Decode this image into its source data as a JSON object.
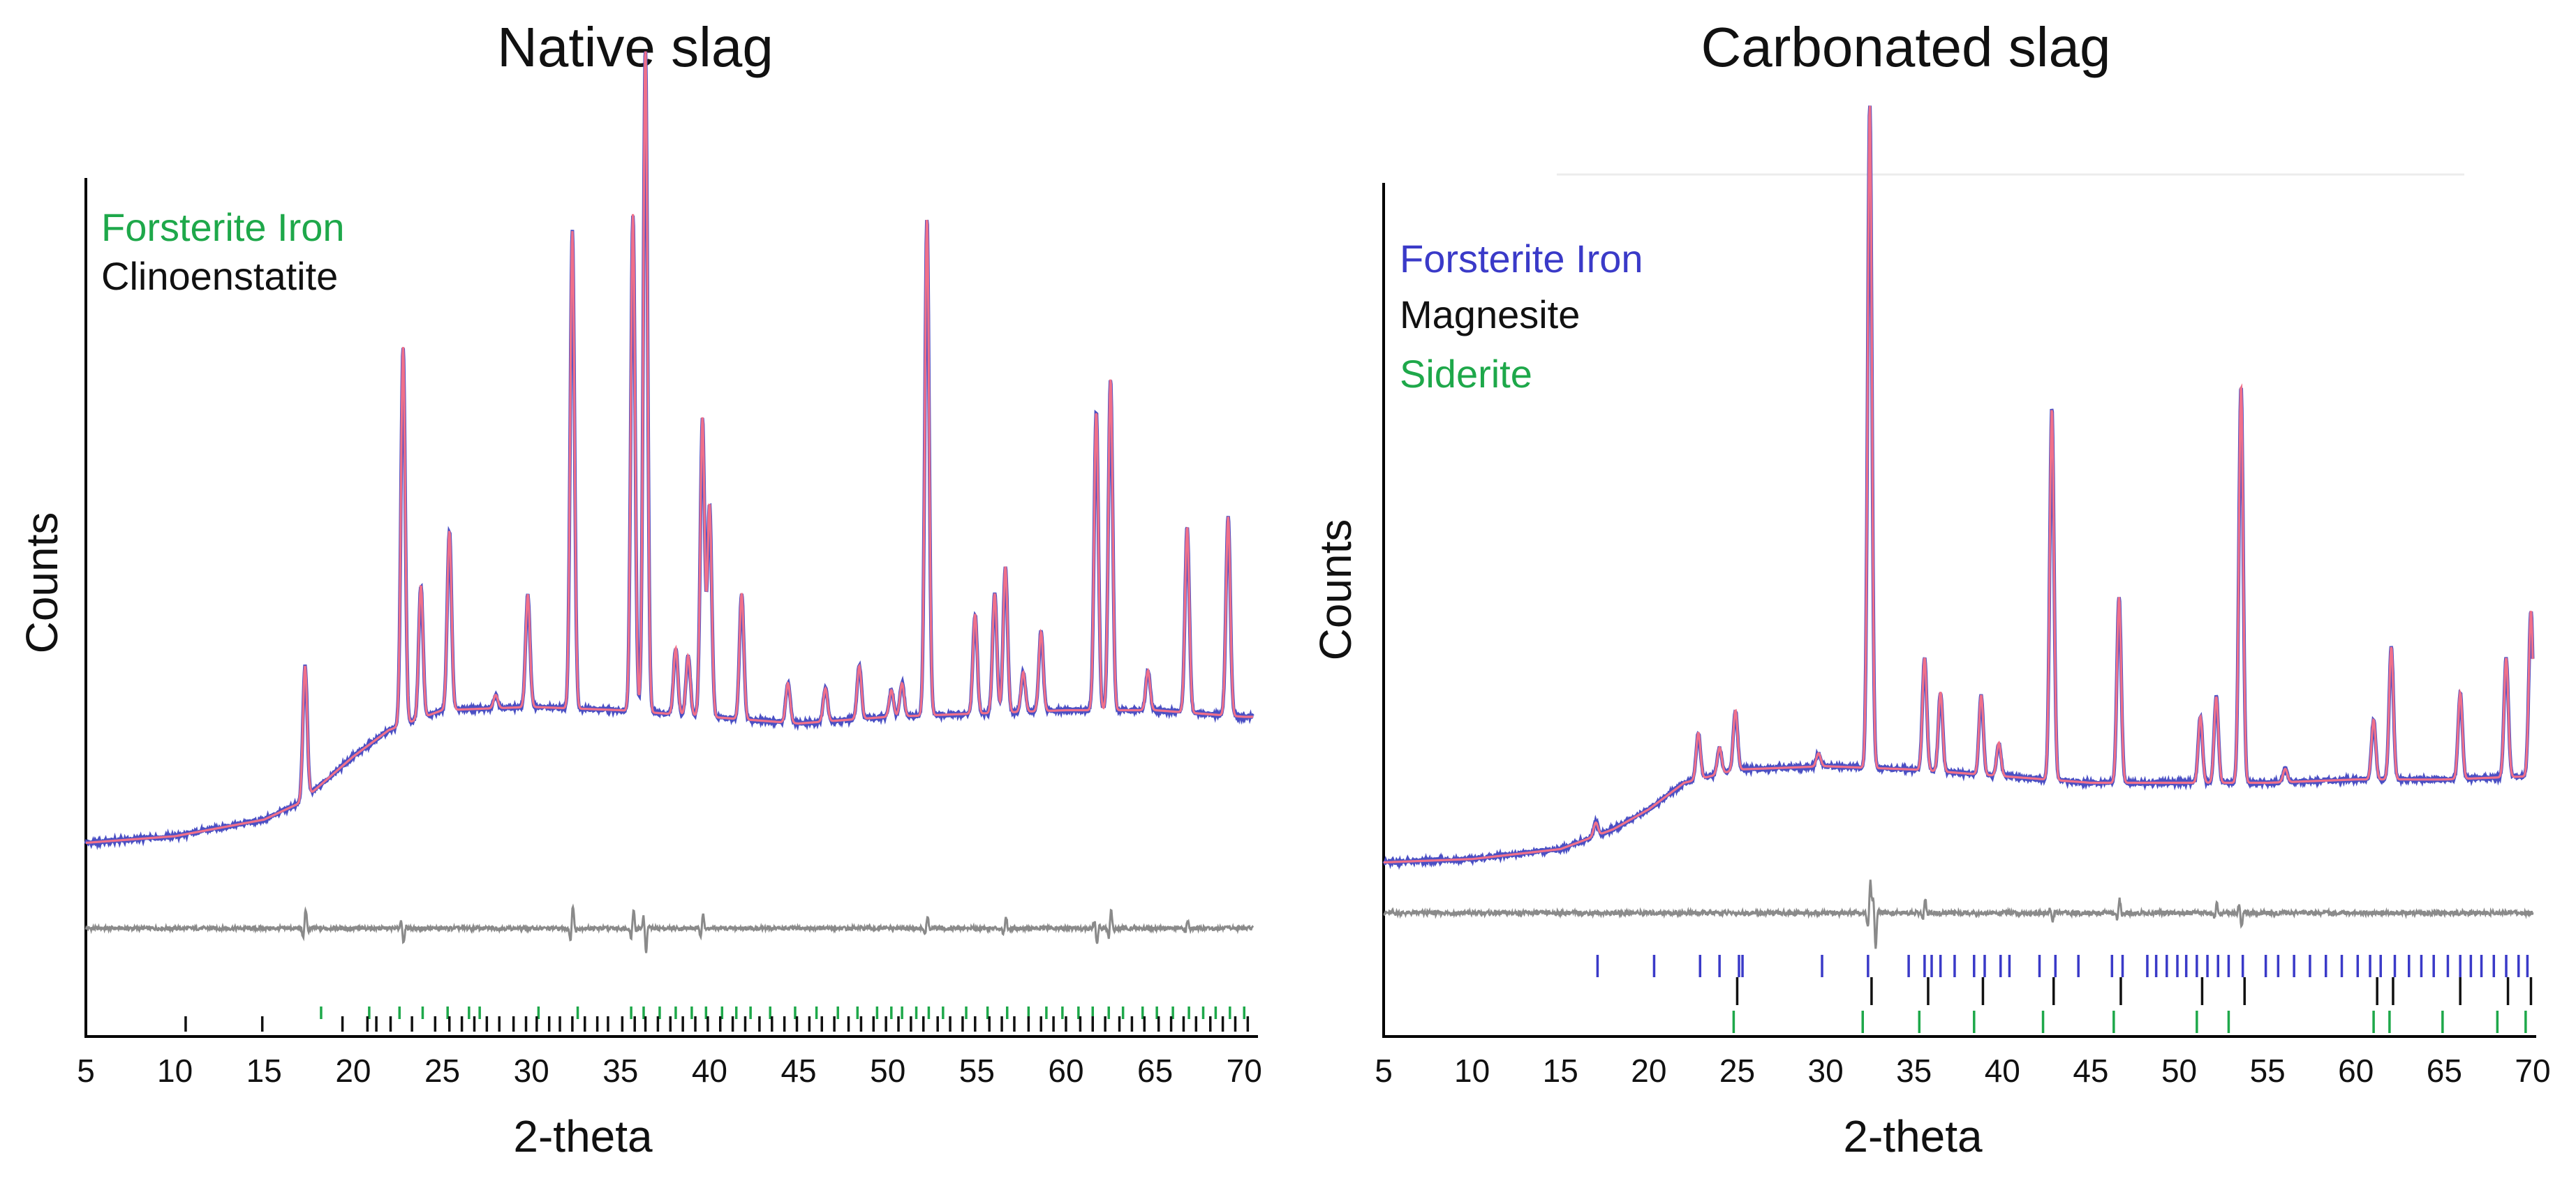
{
  "colors": {
    "observed": "#4a4fc4",
    "calculated": "#f0708a",
    "difference": "#8a8a8a",
    "axis": "#000000",
    "green": "#1ea84a",
    "blue": "#3a3ac8",
    "black": "#111111"
  },
  "chart_data": [
    {
      "type": "line",
      "title": "Native slag",
      "xlabel": "2-theta",
      "ylabel": "Counts",
      "xlim": [
        5,
        70.5
      ],
      "xticks": [
        5,
        10,
        15,
        20,
        25,
        30,
        35,
        40,
        45,
        50,
        55,
        60,
        65,
        70
      ],
      "ylim": [
        0,
        100
      ],
      "legend": [
        {
          "label": "Forsterite Iron",
          "color": "#1ea84a"
        },
        {
          "label": "Clinoenstatite",
          "color": "#111111"
        }
      ],
      "series": [
        {
          "name": "Observed",
          "color": "#4a4fc4"
        },
        {
          "name": "Calculated",
          "color": "#f0708a"
        },
        {
          "name": "Difference",
          "color": "#8a8a8a"
        }
      ],
      "background": [
        [
          5,
          5
        ],
        [
          10,
          6
        ],
        [
          15,
          8.5
        ],
        [
          17,
          11
        ],
        [
          20,
          18
        ],
        [
          22,
          22
        ],
        [
          25,
          25
        ],
        [
          30,
          25.5
        ],
        [
          35,
          25
        ],
        [
          40,
          24
        ],
        [
          45,
          23
        ],
        [
          50,
          24
        ],
        [
          55,
          24.5
        ],
        [
          60,
          25
        ],
        [
          65,
          25
        ],
        [
          70,
          24
        ]
      ],
      "peaks": [
        {
          "x": 17.3,
          "h": 20
        },
        {
          "x": 22.8,
          "h": 57
        },
        {
          "x": 23.8,
          "h": 20
        },
        {
          "x": 25.4,
          "h": 27
        },
        {
          "x": 28.0,
          "h": 2
        },
        {
          "x": 29.8,
          "h": 17
        },
        {
          "x": 32.3,
          "h": 72
        },
        {
          "x": 35.7,
          "h": 75
        },
        {
          "x": 36.4,
          "h": 100
        },
        {
          "x": 38.1,
          "h": 10
        },
        {
          "x": 38.8,
          "h": 9
        },
        {
          "x": 39.6,
          "h": 45
        },
        {
          "x": 40.0,
          "h": 32
        },
        {
          "x": 41.8,
          "h": 19
        },
        {
          "x": 44.4,
          "h": 6
        },
        {
          "x": 46.5,
          "h": 5
        },
        {
          "x": 48.4,
          "h": 8
        },
        {
          "x": 50.2,
          "h": 4
        },
        {
          "x": 50.8,
          "h": 5
        },
        {
          "x": 52.2,
          "h": 75
        },
        {
          "x": 54.9,
          "h": 15
        },
        {
          "x": 56.0,
          "h": 18
        },
        {
          "x": 56.6,
          "h": 22
        },
        {
          "x": 57.6,
          "h": 6
        },
        {
          "x": 58.6,
          "h": 12
        },
        {
          "x": 61.7,
          "h": 45
        },
        {
          "x": 62.5,
          "h": 50
        },
        {
          "x": 64.6,
          "h": 6
        },
        {
          "x": 66.8,
          "h": 28
        },
        {
          "x": 69.1,
          "h": 30
        }
      ],
      "difference_features": [
        {
          "x": 17.3,
          "d": 5
        },
        {
          "x": 22.8,
          "d": -4
        },
        {
          "x": 32.3,
          "d": 6
        },
        {
          "x": 35.7,
          "d": 5
        },
        {
          "x": 36.4,
          "d": -6
        },
        {
          "x": 39.6,
          "d": 4
        },
        {
          "x": 52.2,
          "d": 3
        },
        {
          "x": 56.6,
          "d": 3
        },
        {
          "x": 61.7,
          "d": -4
        },
        {
          "x": 62.5,
          "d": 5
        },
        {
          "x": 66.8,
          "d": 2
        }
      ],
      "ticks": [
        {
          "phase": "Forsterite Iron",
          "color": "#1ea84a",
          "positions": [
            18.2,
            20.9,
            22.6,
            23.9,
            25.3,
            26.5,
            27.1,
            30.4,
            32.6,
            35.6,
            36.3,
            37.2,
            38.1,
            39.0,
            39.8,
            40.7,
            41.5,
            42.3,
            43.4,
            44.8,
            46.0,
            47.2,
            48.3,
            49.4,
            50.2,
            50.8,
            51.6,
            52.3,
            53.1,
            54.4,
            55.6,
            56.7,
            57.9,
            58.9,
            59.8,
            60.7,
            61.5,
            62.4,
            63.2,
            64.3,
            65.1,
            66.0,
            66.9,
            67.7,
            68.4,
            69.2,
            70.0
          ]
        },
        {
          "phase": "Clinoenstatite",
          "color": "#111111",
          "positions": [
            10.6,
            14.9,
            19.4,
            20.8,
            21.3,
            22.1,
            23.3,
            24.6,
            25.4,
            26.1,
            26.8,
            27.5,
            28.2,
            29.0,
            29.7,
            30.3,
            31.0,
            31.6,
            32.3,
            33.0,
            33.7,
            34.3,
            35.1,
            35.8,
            36.4,
            37.1,
            37.8,
            38.5,
            39.2,
            39.9,
            40.6,
            41.3,
            42.0,
            42.8,
            43.5,
            44.2,
            44.9,
            45.6,
            46.3,
            47.0,
            47.8,
            48.5,
            49.2,
            49.9,
            50.6,
            51.3,
            52.0,
            52.8,
            53.5,
            54.2,
            54.9,
            55.7,
            56.4,
            57.1,
            57.9,
            58.6,
            59.3,
            60.0,
            60.8,
            61.5,
            62.2,
            63.0,
            63.7,
            64.4,
            65.2,
            65.9,
            66.6,
            67.3,
            68.1,
            68.8,
            69.5,
            70.2
          ]
        }
      ]
    },
    {
      "type": "line",
      "title": "Carbonated slag",
      "xlabel": "2-theta",
      "ylabel": "Counts",
      "xlim": [
        5,
        70
      ],
      "xticks": [
        5,
        10,
        15,
        20,
        25,
        30,
        35,
        40,
        45,
        50,
        55,
        60,
        65,
        70
      ],
      "ylim": [
        0,
        100
      ],
      "legend": [
        {
          "label": "Forsterite Iron",
          "color": "#3a3ac8"
        },
        {
          "label": "Magnesite",
          "color": "#111111"
        },
        {
          "label": "Siderite",
          "color": "#1ea84a"
        }
      ],
      "series": [
        {
          "name": "Observed",
          "color": "#4a4fc4"
        },
        {
          "name": "Calculated",
          "color": "#f0708a"
        },
        {
          "name": "Difference",
          "color": "#8a8a8a"
        }
      ],
      "background": [
        [
          5,
          1
        ],
        [
          10,
          1.5
        ],
        [
          15,
          3
        ],
        [
          18,
          6
        ],
        [
          20,
          9
        ],
        [
          22,
          13
        ],
        [
          25,
          15
        ],
        [
          30,
          15.5
        ],
        [
          35,
          15
        ],
        [
          40,
          14
        ],
        [
          45,
          13
        ],
        [
          50,
          13
        ],
        [
          55,
          13
        ],
        [
          60,
          13.5
        ],
        [
          65,
          13.5
        ],
        [
          70,
          14
        ]
      ],
      "peaks": [
        {
          "x": 17.0,
          "h": 2
        },
        {
          "x": 22.8,
          "h": 7
        },
        {
          "x": 24.0,
          "h": 4
        },
        {
          "x": 24.9,
          "h": 9
        },
        {
          "x": 29.6,
          "h": 2
        },
        {
          "x": 32.5,
          "h": 100
        },
        {
          "x": 35.6,
          "h": 17
        },
        {
          "x": 36.5,
          "h": 12
        },
        {
          "x": 38.8,
          "h": 12
        },
        {
          "x": 39.8,
          "h": 5
        },
        {
          "x": 42.8,
          "h": 56
        },
        {
          "x": 46.6,
          "h": 28
        },
        {
          "x": 51.2,
          "h": 10
        },
        {
          "x": 52.1,
          "h": 13
        },
        {
          "x": 53.5,
          "h": 60
        },
        {
          "x": 56.0,
          "h": 2
        },
        {
          "x": 61.0,
          "h": 9
        },
        {
          "x": 62.0,
          "h": 20
        },
        {
          "x": 65.9,
          "h": 13
        },
        {
          "x": 68.5,
          "h": 18
        },
        {
          "x": 69.9,
          "h": 25
        }
      ],
      "difference_features": [
        {
          "x": 32.5,
          "d": 7
        },
        {
          "x": 32.8,
          "d": -8
        },
        {
          "x": 35.6,
          "d": 3
        },
        {
          "x": 42.8,
          "d": -2
        },
        {
          "x": 46.6,
          "d": 3
        },
        {
          "x": 52.1,
          "d": 2
        },
        {
          "x": 53.5,
          "d": -3
        }
      ],
      "ticks": [
        {
          "phase": "Forsterite Iron",
          "color": "#3a3ac8",
          "positions": [
            17.1,
            20.3,
            22.9,
            24.0,
            25.1,
            25.3,
            29.8,
            32.4,
            34.7,
            35.6,
            36.0,
            36.5,
            37.3,
            38.4,
            39.0,
            39.9,
            40.4,
            42.1,
            43.0,
            44.3,
            46.2,
            46.8,
            48.2,
            48.7,
            49.3,
            49.9,
            50.4,
            51.0,
            51.6,
            52.2,
            52.8,
            53.6,
            54.9,
            55.6,
            56.5,
            57.4,
            58.3,
            59.2,
            60.1,
            60.8,
            61.4,
            62.2,
            63.0,
            63.7,
            64.4,
            65.2,
            65.9,
            66.5,
            67.1,
            67.8,
            68.5,
            69.2,
            69.7
          ]
        },
        {
          "phase": "Magnesite",
          "color": "#111111",
          "positions": [
            25.0,
            32.6,
            35.8,
            38.9,
            42.9,
            46.7,
            51.3,
            53.7,
            61.2,
            62.1,
            65.9,
            68.6,
            69.9
          ]
        },
        {
          "phase": "Siderite",
          "color": "#1ea84a",
          "positions": [
            24.8,
            32.1,
            35.3,
            38.4,
            42.3,
            46.3,
            51.0,
            52.8,
            61.0,
            61.9,
            64.9,
            68.0,
            69.6
          ]
        }
      ]
    }
  ]
}
